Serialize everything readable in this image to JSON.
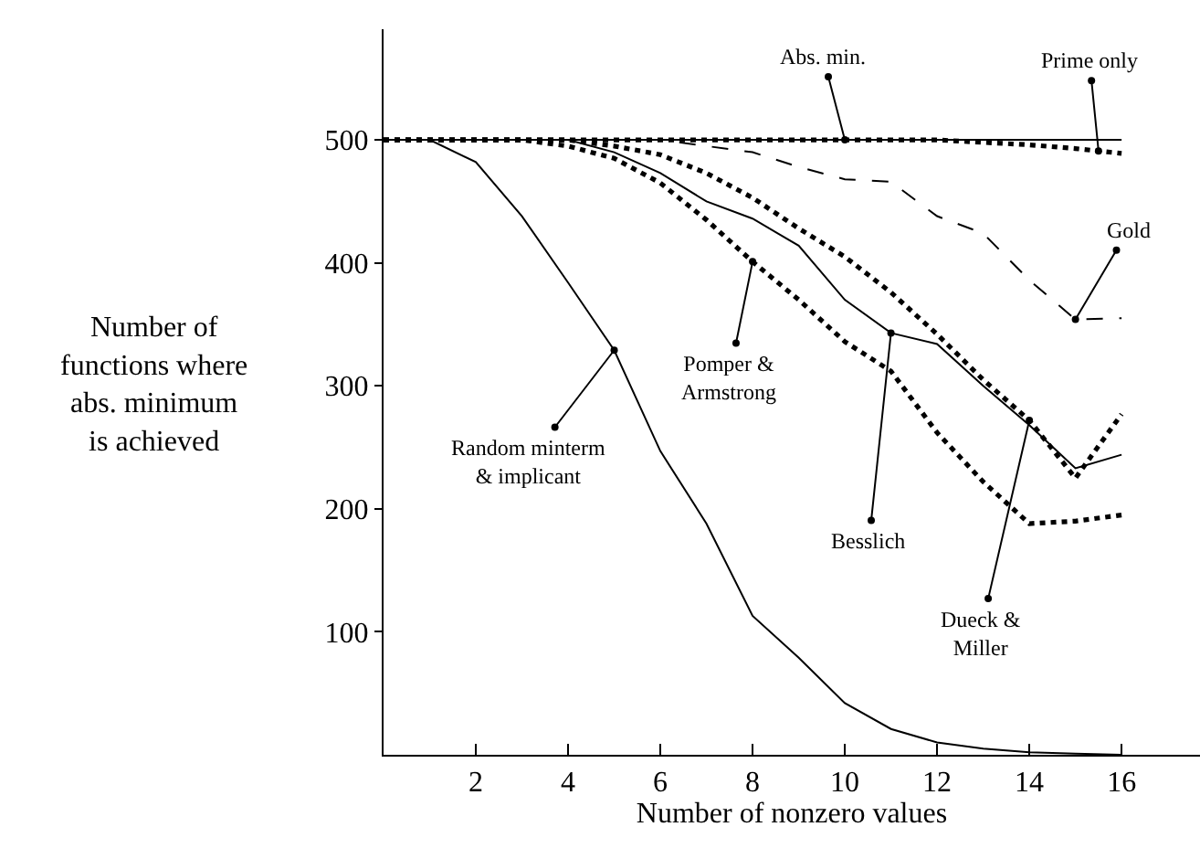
{
  "chart_data": {
    "type": "line",
    "xlabel": "Number of nonzero values",
    "ylabel": "Number of\nfunctions where\nabs. minimum\nis achieved",
    "x": [
      0,
      1,
      2,
      3,
      4,
      5,
      6,
      7,
      8,
      9,
      10,
      11,
      12,
      13,
      14,
      15,
      16
    ],
    "xlim": [
      0,
      17.7
    ],
    "xticks": [
      2,
      4,
      6,
      8,
      10,
      12,
      14,
      16
    ],
    "ylim": [
      0,
      590
    ],
    "yticks": [
      100,
      200,
      300,
      400,
      500
    ],
    "legend": false,
    "marker": "none",
    "series": [
      {
        "color": "#000000",
        "line_style": "solid",
        "values": [
          500,
          500,
          482,
          438,
          384,
          329,
          247,
          188,
          113,
          79,
          42,
          21,
          10,
          5,
          2,
          1,
          0
        ]
      },
      {
        "color": "#000000",
        "line_style": "solid",
        "values": [
          500,
          500,
          500,
          500,
          500,
          500,
          500,
          500,
          500,
          500,
          500,
          500,
          500,
          500,
          500,
          500,
          500
        ]
      },
      {
        "color": "#000000",
        "line_style": "dotted",
        "values": [
          500,
          500,
          500,
          500,
          500,
          500,
          500,
          500,
          500,
          500,
          500,
          500,
          500,
          498,
          496,
          493,
          489
        ]
      },
      {
        "color": "#000000",
        "line_style": "dashed",
        "values": [
          500,
          500,
          500,
          500,
          500,
          500,
          500,
          495,
          490,
          478,
          468,
          466,
          438,
          424,
          386,
          354,
          355
        ]
      },
      {
        "color": "#000000",
        "line_style": "dotted",
        "values": [
          500,
          500,
          500,
          500,
          495,
          485,
          465,
          435,
          401,
          370,
          336,
          312,
          262,
          222,
          188,
          190,
          195
        ]
      },
      {
        "color": "#000000",
        "line_style": "solid",
        "values": [
          500,
          500,
          500,
          500,
          500,
          490,
          473,
          450,
          436,
          414,
          370,
          343,
          334,
          300,
          268,
          233,
          244
        ]
      },
      {
        "color": "#000000",
        "line_style": "dotted",
        "values": [
          500,
          500,
          500,
          500,
          500,
          495,
          488,
          473,
          453,
          428,
          405,
          376,
          342,
          305,
          272,
          225,
          277
        ]
      }
    ],
    "annotations": [
      {
        "text": "Random minterm\n& implicant",
        "x": 5,
        "y": 329
      },
      {
        "text": "Abs. min.",
        "x": 10,
        "y": 500
      },
      {
        "text": "Prime only",
        "x": 15.5,
        "y": 491
      },
      {
        "text": "Gold",
        "x": 15,
        "y": 354
      },
      {
        "text": "Pomper &\nArmstrong",
        "x": 8,
        "y": 401
      },
      {
        "text": "Besslich",
        "x": 11,
        "y": 343
      },
      {
        "text": "Dueck &\nMiller",
        "x": 14,
        "y": 272
      }
    ]
  }
}
